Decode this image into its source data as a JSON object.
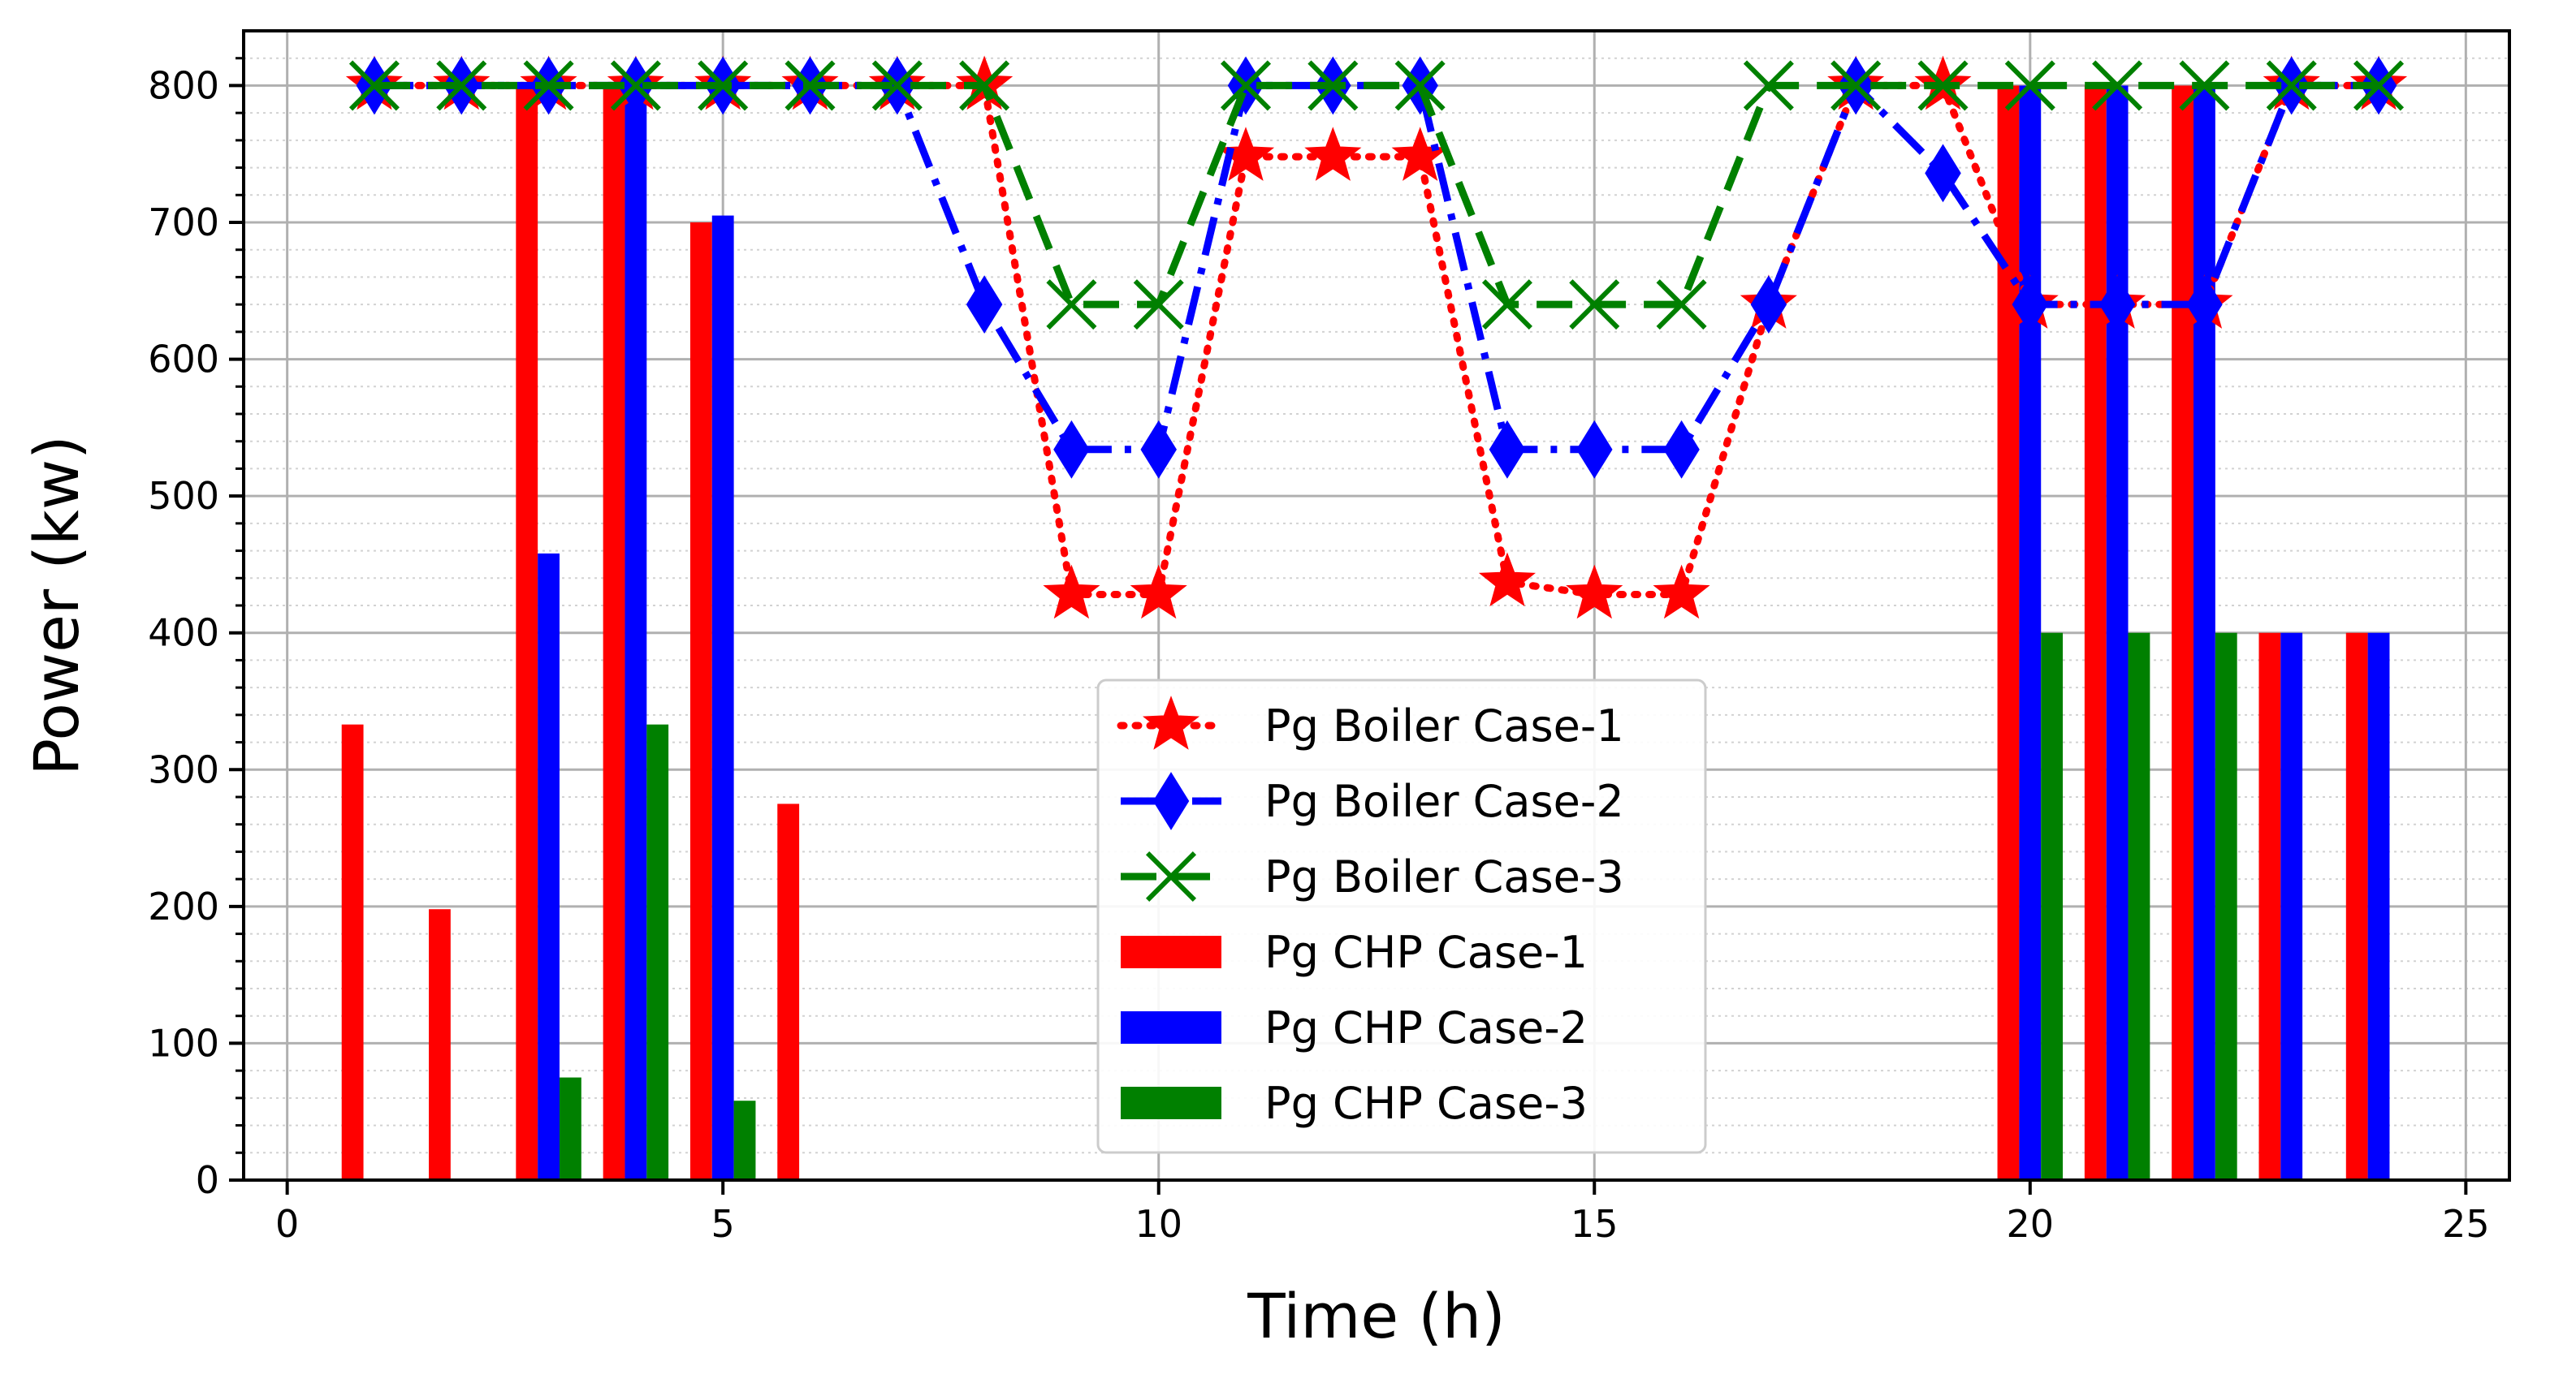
{
  "chart_data": {
    "type": "bar+line",
    "xlabel": "Time (h)",
    "ylabel": "Power (kw)",
    "xlim": [
      -0.5,
      25.5
    ],
    "ylim": [
      0,
      840
    ],
    "xticks": [
      0,
      5,
      10,
      15,
      20,
      25
    ],
    "yticks": [
      0,
      100,
      200,
      300,
      400,
      500,
      600,
      700,
      800
    ],
    "grid": true,
    "legend_position": "center",
    "x": [
      1,
      2,
      3,
      4,
      5,
      6,
      7,
      8,
      9,
      10,
      11,
      12,
      13,
      14,
      15,
      16,
      17,
      18,
      19,
      20,
      21,
      22,
      23,
      24
    ],
    "line_series": [
      {
        "name": "Pg Boiler Case-1",
        "color": "#ff0000",
        "marker": "star",
        "linestyle": "dotted",
        "values": [
          800,
          800,
          800,
          800,
          800,
          800,
          800,
          800,
          428,
          428,
          748,
          748,
          748,
          437,
          428,
          428,
          640,
          800,
          800,
          640,
          640,
          640,
          800,
          800
        ]
      },
      {
        "name": "Pg Boiler Case-2",
        "color": "#0000ff",
        "marker": "diamond",
        "linestyle": "dashdot",
        "values": [
          800,
          800,
          800,
          800,
          800,
          800,
          800,
          640,
          534,
          534,
          800,
          800,
          800,
          534,
          534,
          534,
          640,
          800,
          736,
          640,
          640,
          640,
          800,
          800
        ]
      },
      {
        "name": "Pg Boiler Case-3",
        "color": "#008000",
        "marker": "x",
        "linestyle": "dashed",
        "values": [
          800,
          800,
          800,
          800,
          800,
          800,
          800,
          800,
          640,
          640,
          800,
          800,
          800,
          640,
          640,
          640,
          800,
          800,
          800,
          800,
          800,
          800,
          800,
          800
        ]
      }
    ],
    "bar_series": [
      {
        "name": "Pg CHP Case-1",
        "color": "#ff0000",
        "values": [
          333,
          198,
          800,
          800,
          700,
          275,
          0,
          0,
          0,
          0,
          0,
          0,
          0,
          0,
          0,
          0,
          0,
          0,
          0,
          800,
          800,
          800,
          400,
          400
        ]
      },
      {
        "name": "Pg CHP Case-2",
        "color": "#0000ff",
        "values": [
          0,
          0,
          458,
          800,
          705,
          0,
          0,
          0,
          0,
          0,
          0,
          0,
          0,
          0,
          0,
          0,
          0,
          0,
          0,
          800,
          800,
          800,
          400,
          400
        ]
      },
      {
        "name": "Pg CHP Case-3",
        "color": "#008000",
        "values": [
          0,
          0,
          75,
          333,
          58,
          0,
          0,
          0,
          0,
          0,
          0,
          0,
          0,
          0,
          0,
          0,
          0,
          0,
          0,
          400,
          400,
          400,
          0,
          0
        ]
      }
    ]
  }
}
